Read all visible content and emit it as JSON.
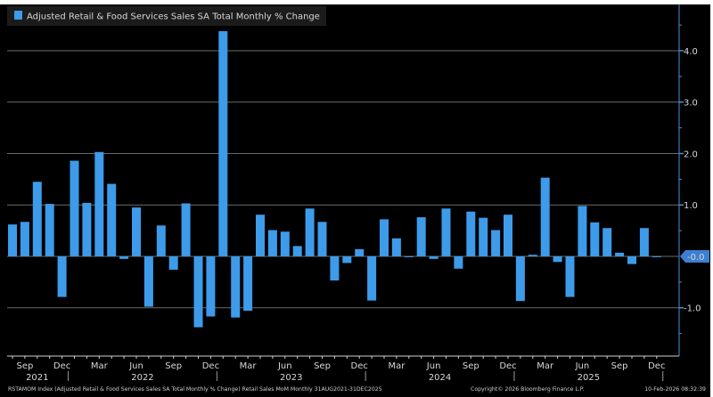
{
  "chart_data": {
    "type": "bar",
    "title": "Adjusted Retail & Food Services Sales SA Total Monthly % Change",
    "legend": [
      {
        "label": "Adjusted Retail & Food Services Sales SA Total Monthly % Change",
        "color": "#3d9be9"
      }
    ],
    "legend_position": "top-left",
    "x_start": "Aug 2021",
    "x_end": "Dec 2025",
    "values": [
      0.62,
      0.67,
      1.45,
      1.02,
      -0.79,
      1.86,
      1.04,
      2.03,
      1.41,
      -0.05,
      0.95,
      -0.98,
      0.6,
      -0.26,
      1.03,
      -1.38,
      -1.17,
      4.38,
      -1.19,
      -1.06,
      0.81,
      0.51,
      0.48,
      0.2,
      0.93,
      0.67,
      -0.47,
      -0.13,
      0.14,
      -0.86,
      0.72,
      0.35,
      0.0,
      0.76,
      -0.05,
      0.93,
      -0.24,
      0.87,
      0.75,
      0.51,
      0.81,
      -0.87,
      0.03,
      1.53,
      -0.11,
      -0.79,
      0.98,
      0.66,
      0.55,
      0.07,
      -0.15,
      0.55,
      -0.0
    ],
    "month_labels": [
      {
        "index": 1,
        "label": "Sep"
      },
      {
        "index": 4,
        "label": "Dec"
      },
      {
        "index": 7,
        "label": "Mar"
      },
      {
        "index": 10,
        "label": "Jun"
      },
      {
        "index": 13,
        "label": "Sep"
      },
      {
        "index": 16,
        "label": "Dec"
      },
      {
        "index": 19,
        "label": "Mar"
      },
      {
        "index": 22,
        "label": "Jun"
      },
      {
        "index": 25,
        "label": "Sep"
      },
      {
        "index": 28,
        "label": "Dec"
      },
      {
        "index": 31,
        "label": "Mar"
      },
      {
        "index": 34,
        "label": "Jun"
      },
      {
        "index": 37,
        "label": "Sep"
      },
      {
        "index": 40,
        "label": "Dec"
      },
      {
        "index": 43,
        "label": "Mar"
      },
      {
        "index": 46,
        "label": "Jun"
      },
      {
        "index": 49,
        "label": "Sep"
      },
      {
        "index": 52,
        "label": "Dec"
      }
    ],
    "year_labels": [
      {
        "center": 2,
        "label": "2021"
      },
      {
        "center": 10.5,
        "label": "2022"
      },
      {
        "center": 22.5,
        "label": "2023"
      },
      {
        "center": 34.5,
        "label": "2024"
      },
      {
        "center": 46.5,
        "label": "2025"
      }
    ],
    "y_ticks": [
      {
        "value": 4.0,
        "label": "4.0"
      },
      {
        "value": 3.0,
        "label": "3.0"
      },
      {
        "value": 2.0,
        "label": "2.0"
      },
      {
        "value": 1.0,
        "label": "1.0"
      },
      {
        "value": -1.0,
        "label": "-1.0"
      }
    ],
    "last_value_label": "-0.0",
    "ylim": [
      -1.94,
      4.9
    ],
    "grid": true,
    "bar_color": "#3d9be9"
  },
  "footer": {
    "source": "RSTAMOM Index (Adjusted Retail & Food Services Sales SA Total Monthly % Change) Retail Sales MoM Monthly 31AUG2021-31DEC2025",
    "copyright": "Copyright© 2026 Bloomberg Finance L.P.",
    "timestamp": "10-Feb-2026 08:32:39"
  }
}
